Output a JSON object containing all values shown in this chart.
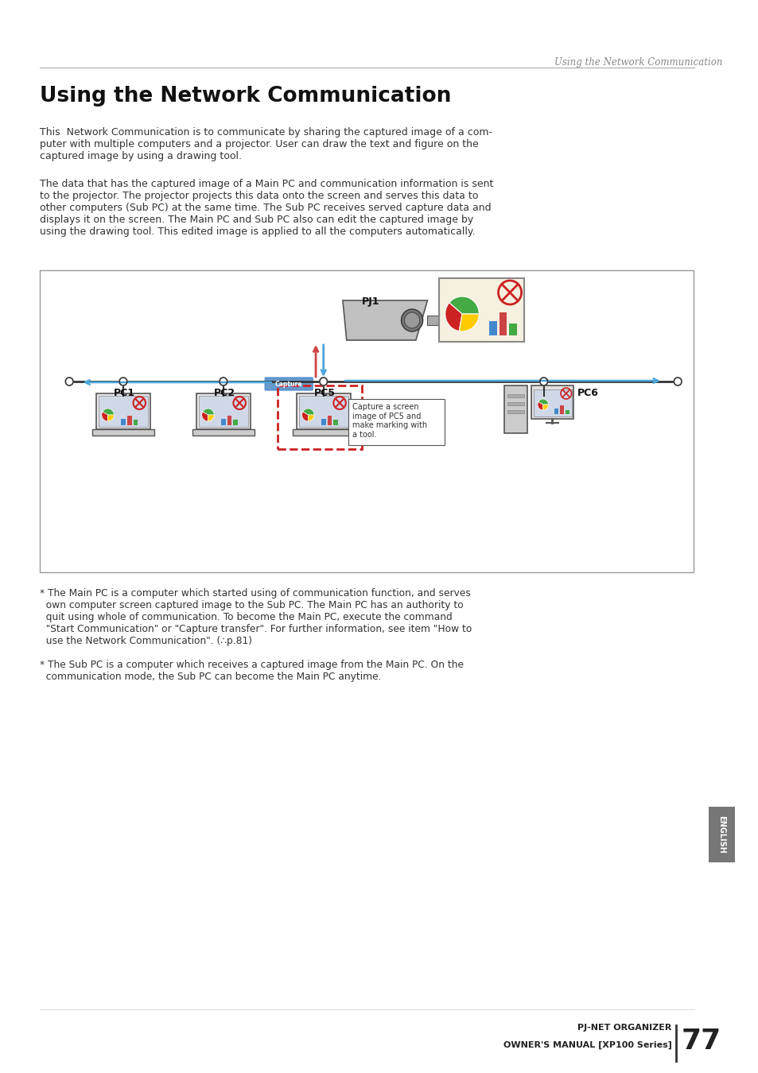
{
  "page_title_italic": "Using the Network Communication",
  "section_title": "Using the Network Communication",
  "body_text_1": "This  Network Communication is to communicate by sharing the captured image of a com-\nputer with multiple computers and a projector. User can draw the text and figure on the\ncaptured image by using a drawing tool.",
  "body_text_2": "The data that has the captured image of a Main PC and communication information is sent\nto the projector. The projector projects this data onto the screen and serves this data to\nother computers (Sub PC) at the same time. The Sub PC receives served capture data and\ndisplays it on the screen. The Main PC and Sub PC also can edit the captured image by\nusing the drawing tool. This edited image is applied to all the computers automatically.",
  "footnote_1": "* The Main PC is a computer which started using of communication function, and serves\n  own computer screen captured image to the Sub PC. The Main PC has an authority to\n  quit using whole of communication. To become the Main PC, execute the command\n  \"Start Communication\" or \"Capture transfer\". For further information, see item \"How to\n  use the Network Communication\". (∴p.81)",
  "footnote_2": "* The Sub PC is a computer which receives a captured image from the Main PC. On the\n  communication mode, the Sub PC can become the Main PC anytime.",
  "footer_left": "PJ-NET ORGANIZER\nOWNER'S MANUAL [XP100 Series]",
  "footer_page": "77",
  "background_color": "#ffffff",
  "text_color": "#333333",
  "header_italic_color": "#555555",
  "title_color": "#111111",
  "footer_color": "#222222",
  "diagram_border_color": "#888888",
  "line_color_main": "#333333",
  "line_color_blue": "#4da6d9",
  "line_color_red_dashed": "#cc2222",
  "pc_labels": [
    "PC1",
    "PC2",
    "PC5",
    "PC6"
  ],
  "pj_label": "PJ1",
  "capture_button_color": "#5599cc",
  "capture_button_text": "Capture",
  "annotation_text": "Capture a screen\nimage of PC5 and\nmake marking with\na tool.",
  "english_tab_color": "#555555"
}
